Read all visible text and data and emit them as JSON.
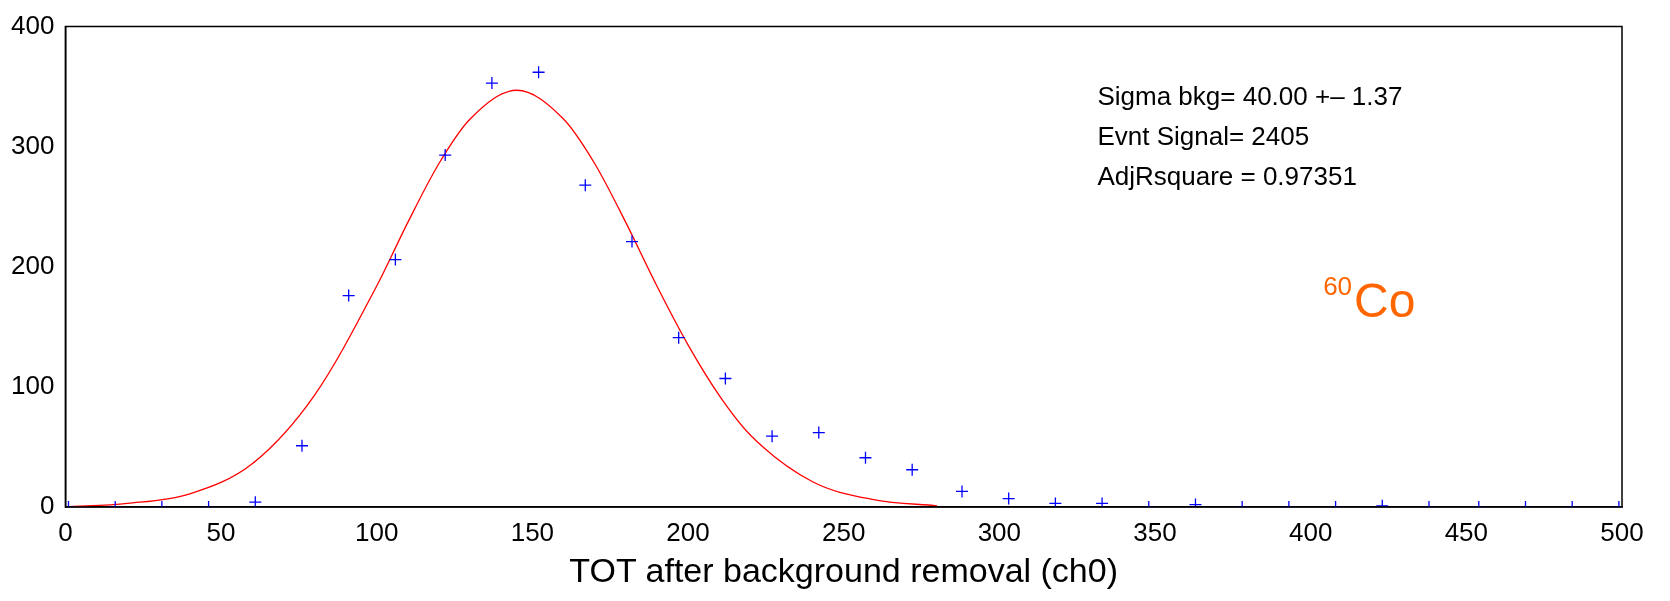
{
  "chart_data": {
    "type": "scatter",
    "xlabel": "TOT after background removal (ch0)",
    "xlim": [
      0,
      500
    ],
    "xticks": [
      0,
      50,
      100,
      150,
      200,
      250,
      300,
      350,
      400,
      450,
      500
    ],
    "ylim": [
      0,
      400
    ],
    "yticks": [
      0,
      100,
      200,
      300,
      400
    ],
    "grid": false,
    "legend": false,
    "series": [
      {
        "type": "scatter",
        "marker": "cross",
        "color": "#0000ff",
        "x": [
          1,
          16,
          31,
          46,
          61,
          76,
          91,
          106,
          122,
          137,
          152,
          167,
          182,
          197,
          212,
          227,
          242,
          257,
          272,
          288,
          303,
          318,
          333,
          348,
          363,
          378,
          393,
          408,
          423,
          438,
          454,
          469,
          484,
          499
        ],
        "values": [
          0,
          0,
          0,
          0,
          4,
          51,
          176,
          206,
          293,
          353,
          362,
          268,
          221,
          141,
          107,
          59,
          62,
          41,
          31,
          13,
          7,
          3,
          3,
          0,
          2,
          0,
          0,
          0,
          1,
          0,
          0,
          0,
          0,
          0
        ]
      },
      {
        "type": "line",
        "marker": "none",
        "line_style": "solid",
        "color": "#ff0000",
        "x": [
          0,
          20,
          40,
          60,
          80,
          100,
          110,
          120,
          130,
          145,
          160,
          170,
          180,
          190,
          200,
          210,
          220,
          240,
          260,
          280
        ],
        "values": [
          0,
          3,
          11,
          36,
          93,
          184,
          237,
          286,
          323,
          347,
          323,
          286,
          237,
          184,
          135,
          93,
          60,
          21,
          6,
          1
        ]
      }
    ],
    "annotations": [
      "Sigma bkg= 40.00 +– 1.37",
      "Evnt Signal= 2405",
      "AdjRsquare = 0.97351",
      "$^{60}$Co"
    ]
  }
}
